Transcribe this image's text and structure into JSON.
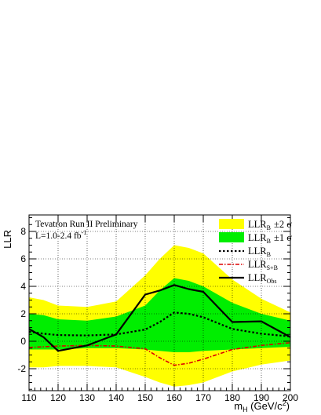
{
  "chart_data": {
    "type": "area",
    "annotation_line1": "Tevatron Run II Preliminary",
    "annotation_lumi_main": "L=1.0-2.4 fb",
    "annotation_lumi_sup": "-1",
    "ylabel": "LLR",
    "xlabel_main": "m",
    "xlabel_sub": "H",
    "xlabel_unit": " (GeV/c",
    "xlabel_unit_sup": "2",
    "xlabel_close": ")",
    "xlim": [
      110,
      200
    ],
    "ylim": [
      -3.6,
      9.2
    ],
    "x_ticks": [
      "110",
      "120",
      "130",
      "140",
      "150",
      "160",
      "170",
      "180",
      "190",
      "200"
    ],
    "y_ticks": [
      "-2",
      "0",
      "2",
      "4",
      "6",
      "8"
    ],
    "grid": true,
    "legend_position": "top-right",
    "colors": {
      "band_2sigma": "#ffff00",
      "band_1sigma": "#00ee00",
      "llr_b": "#000000",
      "llr_sb": "#dd0000",
      "llr_obs": "#000000"
    },
    "x": [
      110,
      115,
      120,
      130,
      140,
      150,
      155,
      160,
      165,
      170,
      180,
      190,
      200
    ],
    "series": [
      {
        "name": "LLR_B ±2 σ",
        "legend_main": "LLR",
        "legend_sub": "B",
        "legend_extra": "±2 σ",
        "kind": "band",
        "upper": [
          3.2,
          3.0,
          2.6,
          2.5,
          2.9,
          4.8,
          6.0,
          7.0,
          6.8,
          6.4,
          4.5,
          3.1,
          2.1
        ],
        "lower": [
          -1.9,
          -1.9,
          -1.8,
          -1.8,
          -1.9,
          -2.6,
          -3.0,
          -3.3,
          -3.2,
          -3.0,
          -2.2,
          -1.7,
          -1.4
        ]
      },
      {
        "name": "LLR_B ±1 σ",
        "legend_main": "LLR",
        "legend_sub": "B",
        "legend_extra": "±1 σ",
        "kind": "band",
        "upper": [
          2.0,
          1.9,
          1.6,
          1.5,
          1.8,
          2.6,
          3.7,
          4.6,
          4.4,
          4.0,
          2.8,
          2.0,
          1.5
        ],
        "lower": [
          -0.6,
          -0.6,
          -0.6,
          -0.5,
          -0.5,
          -0.6,
          -0.7,
          -0.8,
          -0.8,
          -0.7,
          -0.6,
          -0.5,
          -0.4
        ]
      },
      {
        "name": "LLR_B",
        "legend_main": "LLR",
        "legend_sub": "B",
        "legend_extra": "",
        "kind": "dotted",
        "values": [
          0.7,
          0.55,
          0.45,
          0.42,
          0.5,
          0.85,
          1.4,
          2.1,
          2.0,
          1.75,
          0.9,
          0.55,
          0.35
        ]
      },
      {
        "name": "LLR_S+B",
        "legend_main": "LLR",
        "legend_sub": "S+B",
        "legend_extra": "",
        "kind": "dashdot",
        "values": [
          -0.45,
          -0.4,
          -0.35,
          -0.3,
          -0.35,
          -0.55,
          -1.2,
          -1.75,
          -1.6,
          -1.3,
          -0.6,
          -0.3,
          -0.1
        ]
      },
      {
        "name": "LLR_Obs",
        "legend_main": "LLR",
        "legend_sub": "Obs",
        "legend_extra": "",
        "kind": "solid",
        "values": [
          0.9,
          0.3,
          -0.7,
          -0.3,
          0.5,
          3.4,
          3.7,
          4.1,
          3.8,
          3.6,
          1.4,
          1.45,
          0.3
        ]
      }
    ]
  }
}
